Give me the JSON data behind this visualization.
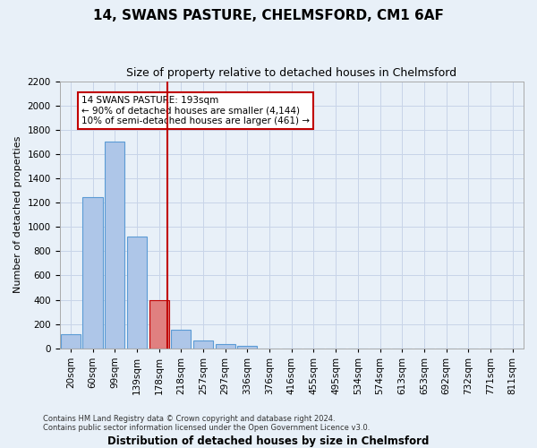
{
  "title": "14, SWANS PASTURE, CHELMSFORD, CM1 6AF",
  "subtitle": "Size of property relative to detached houses in Chelmsford",
  "xlabel_bottom": "Distribution of detached houses by size in Chelmsford",
  "ylabel": "Number of detached properties",
  "footnote1": "Contains HM Land Registry data © Crown copyright and database right 2024.",
  "footnote2": "Contains public sector information licensed under the Open Government Licence v3.0.",
  "bin_labels": [
    "20sqm",
    "60sqm",
    "99sqm",
    "139sqm",
    "178sqm",
    "218sqm",
    "257sqm",
    "297sqm",
    "336sqm",
    "376sqm",
    "416sqm",
    "455sqm",
    "495sqm",
    "534sqm",
    "574sqm",
    "613sqm",
    "653sqm",
    "692sqm",
    "732sqm",
    "771sqm",
    "811sqm"
  ],
  "bar_heights": [
    120,
    1245,
    1700,
    920,
    400,
    155,
    65,
    35,
    20,
    0,
    0,
    0,
    0,
    0,
    0,
    0,
    0,
    0,
    0,
    0,
    0
  ],
  "highlight_bin_index": 4,
  "bar_color": "#aec6e8",
  "bar_edge_color": "#5b9bd5",
  "highlight_bar_color": "#e08080",
  "highlight_bar_edge_color": "#c00000",
  "vline_x": 4,
  "vline_color": "#c00000",
  "ylim": [
    0,
    2200
  ],
  "yticks": [
    0,
    200,
    400,
    600,
    800,
    1000,
    1200,
    1400,
    1600,
    1800,
    2000,
    2200
  ],
  "grid_color": "#c8d4e8",
  "annotation_text": "14 SWANS PASTURE: 193sqm\n← 90% of detached houses are smaller (4,144)\n10% of semi-detached houses are larger (461) →",
  "annotation_box_color": "#ffffff",
  "annotation_box_edge_color": "#c00000",
  "bg_color": "#e8f0f8",
  "title_fontsize": 11,
  "subtitle_fontsize": 9,
  "ylabel_fontsize": 8,
  "tick_fontsize": 7.5,
  "annot_fontsize": 7.5
}
